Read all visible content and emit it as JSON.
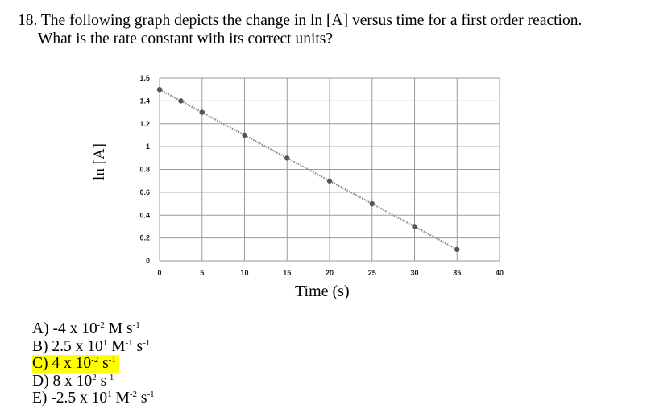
{
  "question": {
    "line1": "18. The following graph depicts the change in ln [A] versus time for a first order reaction.",
    "line2": "What is the rate constant with its correct units?"
  },
  "chart_data": {
    "type": "scatter",
    "title": "",
    "xlabel": "Time (s)",
    "ylabel": "ln [A]",
    "xlim": [
      0,
      40
    ],
    "ylim": [
      0,
      1.6
    ],
    "x_ticks": [
      "0",
      "5",
      "10",
      "15",
      "20",
      "25",
      "30",
      "35",
      "40"
    ],
    "y_ticks": [
      "0",
      "0.2",
      "0.4",
      "0.6",
      "0.8",
      "1",
      "1.2",
      "1.4",
      "1.6"
    ],
    "grid": true,
    "trendline": "dotted linear",
    "x": [
      0,
      2.5,
      5,
      10,
      15,
      20,
      25,
      30,
      35
    ],
    "y": [
      1.5,
      1.4,
      1.3,
      1.1,
      0.9,
      0.7,
      0.5,
      0.3,
      0.1
    ]
  },
  "answers": [
    {
      "label": "A)",
      "text": "-4 x 10",
      "exp1": "-2",
      "mid": " M s",
      "exp2": "-1",
      "tail": "",
      "exp3": "",
      "highlight": false
    },
    {
      "label": "B)",
      "text": "2.5 x 10",
      "exp1": "1",
      "mid": " M",
      "exp2": "-1",
      "tail": " s",
      "exp3": "-1",
      "highlight": false
    },
    {
      "label": "C)",
      "text": "4 x 10",
      "exp1": "-2",
      "mid": " s",
      "exp2": "-1",
      "tail": "",
      "exp3": "",
      "highlight": true
    },
    {
      "label": "D)",
      "text": "8 x 10",
      "exp1": "2",
      "mid": " s",
      "exp2": "-1",
      "tail": "",
      "exp3": "",
      "highlight": false
    },
    {
      "label": "E)",
      "text": "-2.5 x 10",
      "exp1": "1",
      "mid": " M",
      "exp2": "-2",
      "tail": " s",
      "exp3": "-1",
      "highlight": false
    }
  ]
}
